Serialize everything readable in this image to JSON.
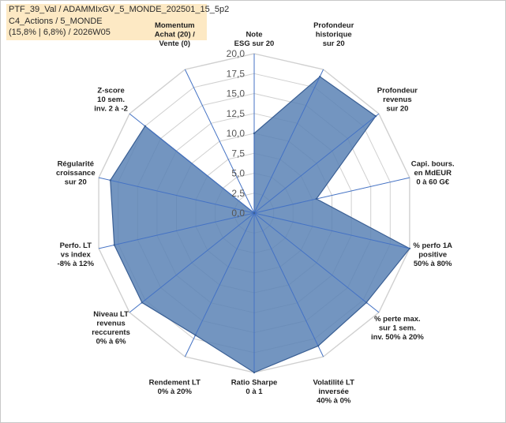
{
  "header": {
    "line1": "PTF_39_Val / ADAMMIxGV_5_MONDE_202501_15_5p2",
    "line2": "C4_Actions / 5_MONDE",
    "line3": "(15,8% | 6,8%) / 2026W05"
  },
  "colors": {
    "fill": "#5b82b5",
    "stroke": "#3a5f94",
    "grid": "#d0d0d0",
    "spoke": "#4472c4",
    "highlight_label": "#c9a86a"
  },
  "chart_data": {
    "type": "radar",
    "title": "",
    "rmin": 0,
    "rmax": 20,
    "ticks": [
      "0,0",
      "2,5",
      "5,0",
      "7,5",
      "10,0",
      "12,5",
      "15,0",
      "17,5",
      "20,0"
    ],
    "axes": [
      {
        "label": [
          "Note",
          "ESG sur 20"
        ],
        "value": 10.0
      },
      {
        "label": [
          "Profondeur",
          "historique",
          "sur 20"
        ],
        "value": 19.0
      },
      {
        "label": [
          "Profondeur",
          "revenus",
          "sur 20"
        ],
        "value": 19.5
      },
      {
        "label": [
          "Capi. bours.",
          "en MdEUR",
          "0 à 60 G€"
        ],
        "value": 8.0
      },
      {
        "label": [
          "% perfo 1A",
          "positive",
          "50% à 80%"
        ],
        "value": 20.0
      },
      {
        "label": [
          "% perte max.",
          "sur 1 sem.",
          "inv. 50% à 20%"
        ],
        "value": 18.0
      },
      {
        "label": [
          "Volatilité LT",
          "inversée",
          "40% à 0%"
        ],
        "value": 18.5
      },
      {
        "label": [
          "Ratio Sharpe",
          "0 à 1"
        ],
        "value": 20.0
      },
      {
        "label": [
          "Rendement LT",
          "0% à 20%"
        ],
        "value": 17.0
      },
      {
        "label": [
          "Niveau LT",
          "revenus",
          "reccurents",
          "0% à 6%"
        ],
        "value": 18.0
      },
      {
        "label": [
          "Perfo. LT",
          "vs index",
          "-8% à 12%"
        ],
        "value": 18.0
      },
      {
        "label": [
          "Régularité",
          "croissance",
          "sur 20"
        ],
        "value": 18.5
      },
      {
        "label": [
          "Z-score",
          "10 sem.",
          "inv. 2 à -2"
        ],
        "value": 17.5
      },
      {
        "label": [
          "Momentum",
          "Achat (20) /",
          "Vente (0)"
        ],
        "value": 0.0,
        "label_highlight": true
      }
    ]
  }
}
